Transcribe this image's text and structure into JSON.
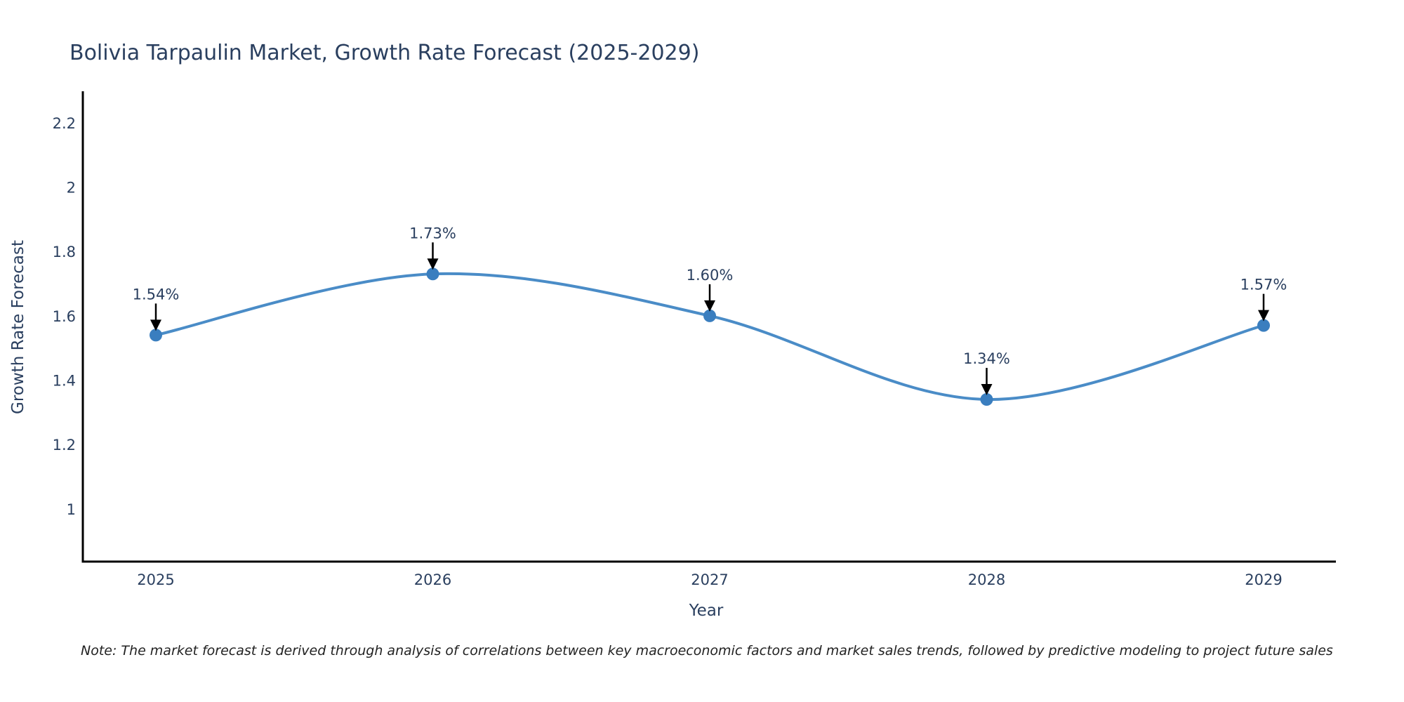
{
  "title": "Bolivia Tarpaulin Market, Growth Rate Forecast (2025-2029)",
  "note": "Note: The market forecast is derived through analysis of correlations between key macroeconomic factors and market sales trends, followed by predictive modeling to project future sales",
  "chart_data": {
    "type": "line",
    "title": "Bolivia Tarpaulin Market, Growth Rate Forecast (2025-2029)",
    "x": [
      "2025",
      "2026",
      "2027",
      "2028",
      "2029"
    ],
    "y": [
      1.54,
      1.73,
      1.6,
      1.34,
      1.57
    ],
    "point_labels": [
      "1.54%",
      "1.73%",
      "1.60%",
      "1.34%",
      "1.57%"
    ],
    "xlabel": "Year",
    "ylabel": "Growth Rate Forecast",
    "yticks": [
      1,
      1.2,
      1.4,
      1.6,
      1.8,
      2,
      2.2
    ],
    "ytick_labels": [
      "1",
      "1.2",
      "1.4",
      "1.6",
      "1.8",
      "2",
      "2.2"
    ],
    "ylim": [
      0.836,
      2.298
    ],
    "grid": false,
    "legend": false,
    "smooth_spline": true,
    "colors": {
      "line": "#4a8cc7",
      "marker": "#3a7ebf",
      "axis": "#000000",
      "text": "#2a3f5f",
      "annotation_arrow": "#000000",
      "note_text": "#222222",
      "background": "#ffffff"
    }
  }
}
